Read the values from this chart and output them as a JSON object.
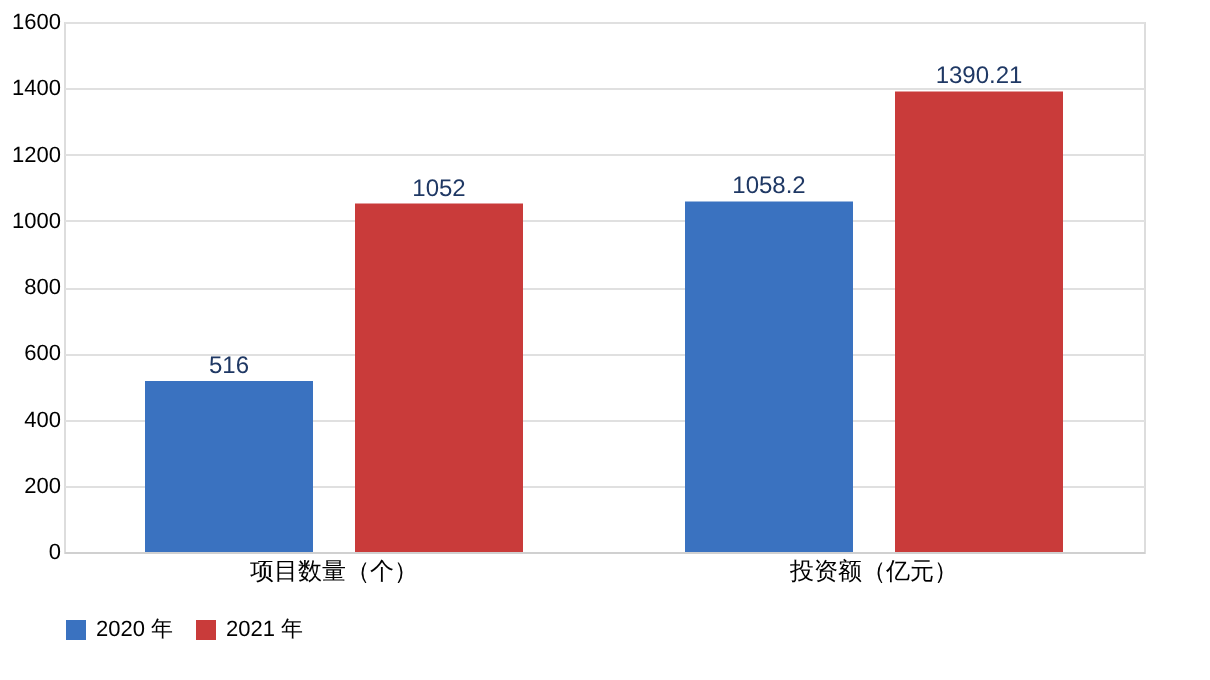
{
  "chart_data": {
    "type": "bar",
    "categories": [
      "项目数量（个）",
      "投资额（亿元）"
    ],
    "series": [
      {
        "name": "2020 年",
        "color": "#3a72c0",
        "values": [
          516,
          1058.2
        ]
      },
      {
        "name": "2021 年",
        "color": "#c93b3a",
        "values": [
          1052,
          1390.21
        ]
      }
    ],
    "ylim": [
      0,
      1600
    ],
    "yticks": [
      0,
      200,
      400,
      600,
      800,
      1000,
      1200,
      1400,
      1600
    ],
    "grid": "y",
    "legend": "bottom",
    "data_labels": true
  }
}
